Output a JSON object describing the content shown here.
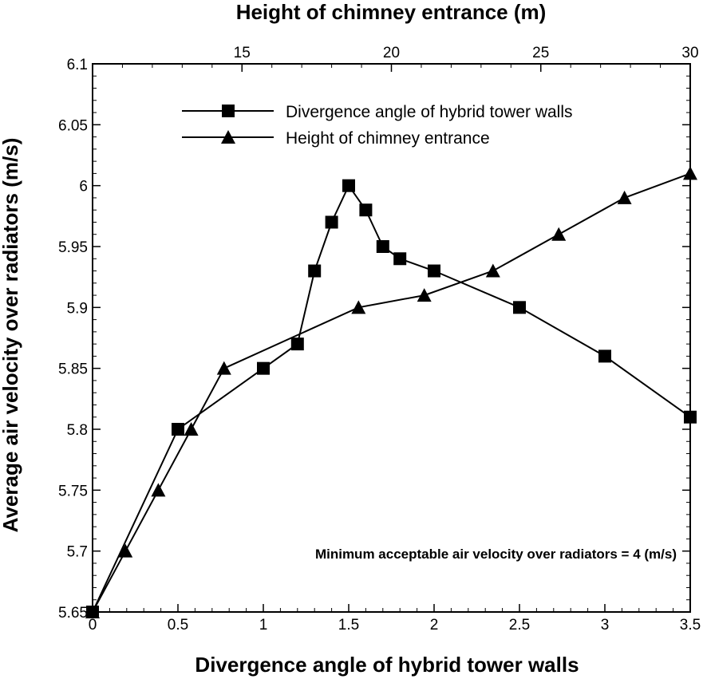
{
  "chart_data": {
    "type": "line",
    "title": "",
    "xlabel": "Divergence angle of hybrid tower walls",
    "x2label": "Height of chimney entrance (m)",
    "ylabel": "Average air velocity over radiators (m/s)",
    "xlim": [
      0,
      3.5
    ],
    "x2lim": [
      10,
      30
    ],
    "ylim": [
      5.65,
      6.1
    ],
    "x_ticks": [
      "0",
      "0.5",
      "1",
      "1.5",
      "2",
      "2.5",
      "3",
      "3.5"
    ],
    "x2_ticks": [
      "15",
      "20",
      "25",
      "30"
    ],
    "y_ticks": [
      "5.65",
      "5.7",
      "5.75",
      "5.8",
      "5.85",
      "5.9",
      "5.95",
      "6",
      "6.05",
      "6.1"
    ],
    "grid": false,
    "legend_position": "top-right",
    "series": [
      {
        "name": "Divergence angle of hybrid tower walls",
        "marker": "square",
        "axis": "bottom",
        "x": [
          0,
          0.5,
          1.0,
          1.2,
          1.3,
          1.4,
          1.5,
          1.6,
          1.7,
          1.8,
          2.0,
          2.5,
          3.0,
          3.5
        ],
        "values": [
          5.65,
          5.8,
          5.85,
          5.87,
          5.93,
          5.97,
          6.0,
          5.98,
          5.95,
          5.94,
          5.93,
          5.9,
          5.86,
          5.81
        ]
      },
      {
        "name": "Height of chimney entrance",
        "marker": "triangle",
        "axis": "top",
        "x": [
          10,
          11.1,
          12.2,
          13.3,
          14.4,
          18.9,
          21.1,
          23.4,
          25.6,
          27.8,
          30
        ],
        "values": [
          5.65,
          5.7,
          5.75,
          5.8,
          5.85,
          5.9,
          5.91,
          5.93,
          5.96,
          5.99,
          6.01
        ]
      }
    ],
    "annotation": "Minimum acceptable air velocity over radiators = 4 (m/s)"
  }
}
